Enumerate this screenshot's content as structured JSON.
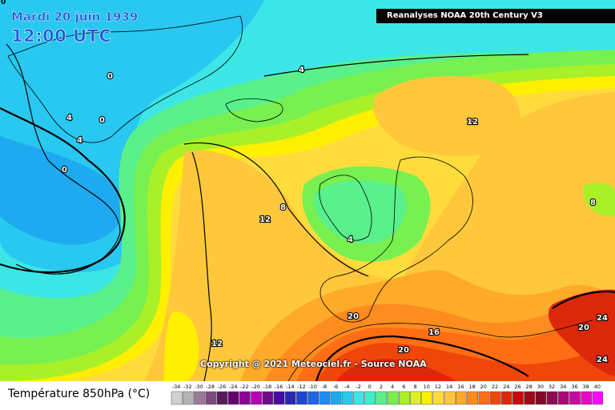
{
  "header": {
    "corner_label": "0",
    "date": "Mardi 20 juin 1939",
    "time": "12:00 UTC",
    "source_banner": "Reanalyses NOAA 20th Century V3"
  },
  "footer": {
    "copyright": "Copyright @ 2021 Meteociel.fr - Source NOAA"
  },
  "legend": {
    "title": "Température 850hPa (°C)",
    "ticks": [
      "-34",
      "-32",
      "-30",
      "-28",
      "-26",
      "-24",
      "-22",
      "-20",
      "-18",
      "-16",
      "-14",
      "-12",
      "-10",
      "-8",
      "-6",
      "-4",
      "-2",
      "0",
      "2",
      "4",
      "6",
      "8",
      "10",
      "12",
      "14",
      "16",
      "18",
      "20",
      "22",
      "24",
      "26",
      "28",
      "30",
      "32",
      "34",
      "36",
      "38",
      "40"
    ],
    "colors": [
      "#d0d0d0",
      "#b4b4b4",
      "#9a7a9a",
      "#7e4a7e",
      "#5a1a5a",
      "#64006e",
      "#8c0094",
      "#b400b4",
      "#6e0a8c",
      "#4b0aa0",
      "#2828b4",
      "#1e46d2",
      "#1e64e6",
      "#1e8cf0",
      "#1eaaf0",
      "#28c8f0",
      "#3ce6e6",
      "#3cf0c8",
      "#5af08c",
      "#78f050",
      "#aaf028",
      "#dcf028",
      "#fff000",
      "#ffdc3c",
      "#ffc83c",
      "#ffaa28",
      "#ff8c1e",
      "#ff6e14",
      "#f0460a",
      "#dc280a",
      "#c80a0a",
      "#a00a14",
      "#820a28",
      "#8c0a50",
      "#aa0a78",
      "#c80aa0",
      "#e60ac8",
      "#ff0aff"
    ]
  },
  "contour_labels": [
    {
      "text": "0"
    },
    {
      "text": "0"
    },
    {
      "text": "4"
    },
    {
      "text": "4"
    },
    {
      "text": "0"
    },
    {
      "text": "4"
    },
    {
      "text": "4"
    },
    {
      "text": "12"
    },
    {
      "text": "8"
    },
    {
      "text": "12"
    },
    {
      "text": "4"
    },
    {
      "text": "8"
    },
    {
      "text": "12"
    },
    {
      "text": "20"
    },
    {
      "text": "16"
    },
    {
      "text": "20"
    },
    {
      "text": "20"
    },
    {
      "text": "24"
    },
    {
      "text": "24"
    }
  ]
}
